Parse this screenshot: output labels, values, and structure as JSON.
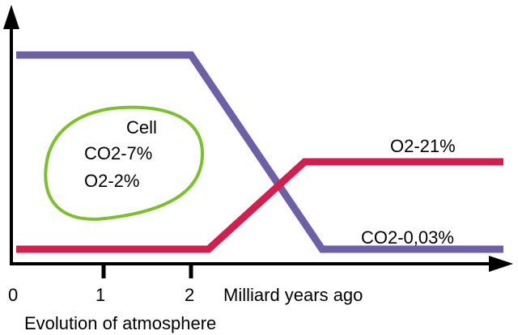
{
  "chart_data": {
    "type": "line",
    "title": "",
    "xlabel": "Milliard years ago",
    "ylabel": "",
    "caption": "Evolution of atmosphere",
    "x_ticks": [
      "0",
      "1",
      "2"
    ],
    "xlim": [
      0,
      5.5
    ],
    "series": [
      {
        "name": "CO2",
        "color": "#6f5fa6",
        "points": [
          [
            0,
            1
          ],
          [
            2,
            1
          ],
          [
            3.5,
            0
          ]
        ],
        "end_label": "CO2-0,03%"
      },
      {
        "name": "O2",
        "color": "#d31f4d",
        "points": [
          [
            0,
            0
          ],
          [
            2.2,
            0
          ],
          [
            3.3,
            0.45
          ]
        ],
        "end_label": "O2-21%"
      }
    ],
    "annotation": {
      "outline_color": "#7cc12a",
      "lines": [
        "Cell",
        "CO2-7%",
        "O2-2%"
      ]
    }
  }
}
